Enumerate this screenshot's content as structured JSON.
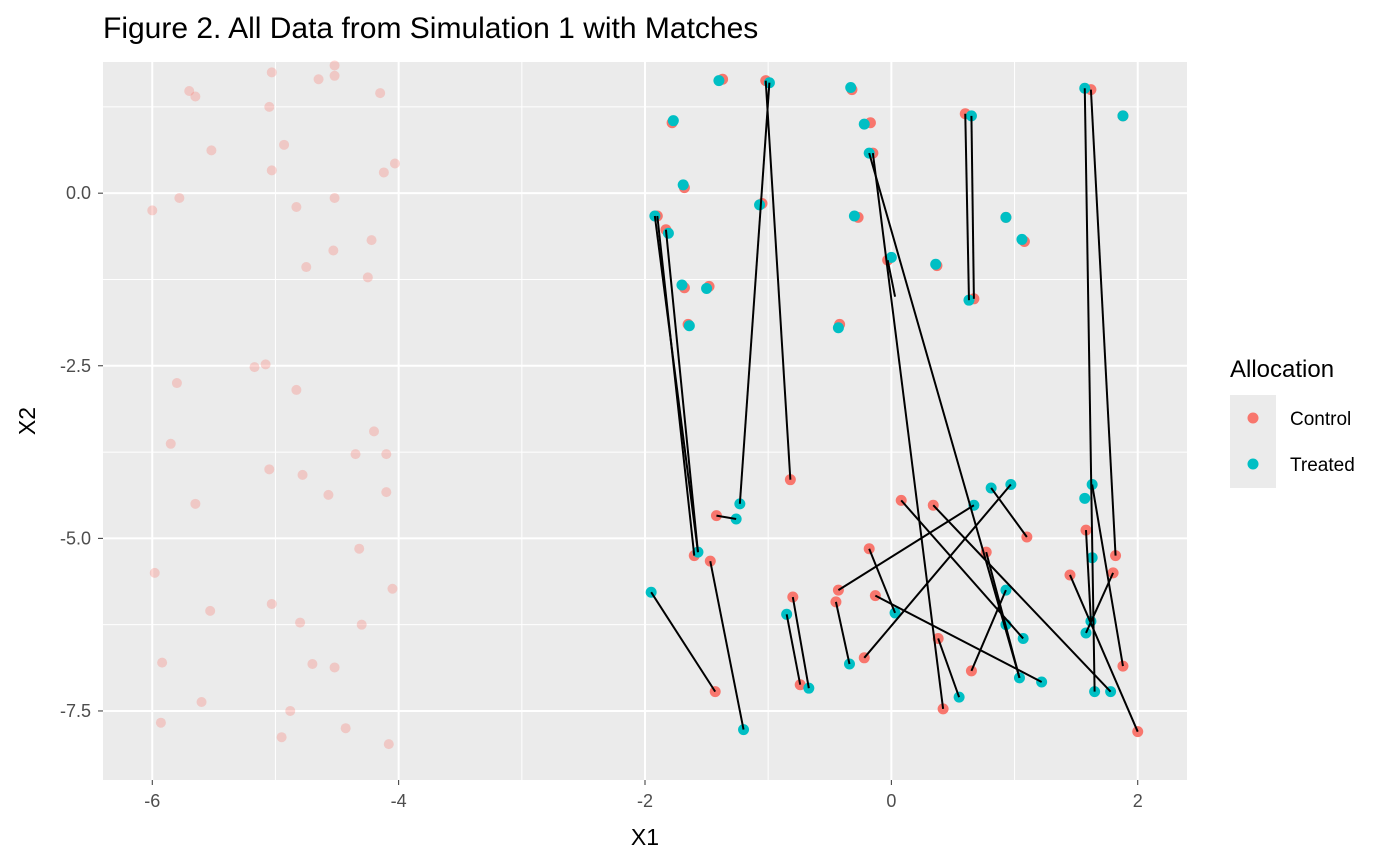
{
  "chart_data": {
    "type": "scatter",
    "title": "Figure 2. All Data from Simulation 1 with Matches",
    "xlabel": "X1",
    "ylabel": "X2",
    "xlim": [
      -6.4,
      2.4
    ],
    "ylim": [
      -8.5,
      1.9
    ],
    "x_ticks": [
      -6,
      -4,
      -2,
      0,
      2
    ],
    "x_tick_labels": [
      "-6",
      "-4",
      "-2",
      "0",
      "2"
    ],
    "y_ticks": [
      0.0,
      -2.5,
      -5.0,
      -7.5
    ],
    "y_tick_labels": [
      "0.0",
      "-2.5",
      "-5.0",
      "-7.5"
    ],
    "grid": true,
    "legend": {
      "title": "Allocation",
      "position": "right",
      "entries": [
        {
          "label": "Control",
          "color": "#F8766D"
        },
        {
          "label": "Treated",
          "color": "#00BFC4"
        }
      ]
    },
    "colors": {
      "control": "#F8766D",
      "treated": "#00BFC4",
      "panel": "#EBEBEB",
      "grid": "#FFFFFF",
      "line": "#000000"
    },
    "unmatched_control_points": [
      [
        -6.0,
        -0.25
      ],
      [
        -5.78,
        -0.07
      ],
      [
        -5.7,
        1.48
      ],
      [
        -5.65,
        1.4
      ],
      [
        -5.52,
        0.62
      ],
      [
        -5.03,
        1.75
      ],
      [
        -5.05,
        1.25
      ],
      [
        -5.03,
        0.33
      ],
      [
        -4.93,
        0.7
      ],
      [
        -4.83,
        -0.2
      ],
      [
        -4.65,
        1.65
      ],
      [
        -4.52,
        1.85
      ],
      [
        -4.52,
        1.7
      ],
      [
        -4.52,
        -0.07
      ],
      [
        -4.53,
        -0.83
      ],
      [
        -4.75,
        -1.07
      ],
      [
        -4.25,
        -1.22
      ],
      [
        -4.22,
        -0.68
      ],
      [
        -4.15,
        1.45
      ],
      [
        -4.12,
        0.3
      ],
      [
        -4.03,
        0.43
      ],
      [
        -5.17,
        -2.52
      ],
      [
        -5.08,
        -2.48
      ],
      [
        -5.8,
        -2.75
      ],
      [
        -4.83,
        -2.85
      ],
      [
        -5.85,
        -3.63
      ],
      [
        -4.2,
        -3.45
      ],
      [
        -4.35,
        -3.78
      ],
      [
        -4.1,
        -3.78
      ],
      [
        -5.05,
        -4.0
      ],
      [
        -4.78,
        -4.08
      ],
      [
        -5.65,
        -4.5
      ],
      [
        -4.57,
        -4.37
      ],
      [
        -4.1,
        -4.33
      ],
      [
        -4.32,
        -5.15
      ],
      [
        -5.98,
        -5.5
      ],
      [
        -5.03,
        -5.95
      ],
      [
        -5.53,
        -6.05
      ],
      [
        -4.05,
        -5.73
      ],
      [
        -4.8,
        -6.22
      ],
      [
        -4.3,
        -6.25
      ],
      [
        -5.92,
        -6.8
      ],
      [
        -4.7,
        -6.82
      ],
      [
        -4.52,
        -6.87
      ],
      [
        -5.6,
        -7.37
      ],
      [
        -4.88,
        -7.5
      ],
      [
        -5.93,
        -7.67
      ],
      [
        -4.43,
        -7.75
      ],
      [
        -4.95,
        -7.88
      ],
      [
        -4.08,
        -7.98
      ]
    ],
    "control_points": [
      [
        -1.37,
        1.65
      ],
      [
        -1.02,
        1.63
      ],
      [
        -0.32,
        1.5
      ],
      [
        0.6,
        1.15
      ],
      [
        1.62,
        1.5
      ],
      [
        1.88,
        1.12
      ],
      [
        -1.78,
        1.02
      ],
      [
        -0.17,
        1.02
      ],
      [
        -0.15,
        0.58
      ],
      [
        -1.68,
        0.08
      ],
      [
        -1.05,
        -0.15
      ],
      [
        -1.9,
        -0.33
      ],
      [
        -1.83,
        -0.53
      ],
      [
        -0.27,
        -0.35
      ],
      [
        0.93,
        -0.35
      ],
      [
        1.08,
        -0.7
      ],
      [
        -1.68,
        -1.37
      ],
      [
        -1.48,
        -1.35
      ],
      [
        -0.03,
        -0.97
      ],
      [
        0.37,
        -1.05
      ],
      [
        0.67,
        -1.53
      ],
      [
        -1.65,
        -1.9
      ],
      [
        -0.42,
        -1.9
      ],
      [
        -0.82,
        -4.15
      ],
      [
        -1.42,
        -4.67
      ],
      [
        0.08,
        -4.45
      ],
      [
        0.34,
        -4.52
      ],
      [
        1.1,
        -4.98
      ],
      [
        1.82,
        -5.25
      ],
      [
        1.58,
        -4.88
      ],
      [
        -1.6,
        -5.25
      ],
      [
        -1.47,
        -5.33
      ],
      [
        -0.18,
        -5.15
      ],
      [
        0.77,
        -5.2
      ],
      [
        1.45,
        -5.53
      ],
      [
        1.8,
        -5.5
      ],
      [
        -0.43,
        -5.75
      ],
      [
        -0.8,
        -5.85
      ],
      [
        -0.45,
        -5.92
      ],
      [
        -0.13,
        -5.83
      ],
      [
        0.38,
        -6.45
      ],
      [
        -0.22,
        -6.73
      ],
      [
        1.88,
        -6.85
      ],
      [
        0.65,
        -6.92
      ],
      [
        -0.74,
        -7.12
      ],
      [
        -1.43,
        -7.22
      ],
      [
        0.42,
        -7.47
      ],
      [
        2.0,
        -7.8
      ]
    ],
    "treated_points": [
      [
        -1.4,
        1.63
      ],
      [
        -0.99,
        1.6
      ],
      [
        -0.33,
        1.53
      ],
      [
        0.65,
        1.12
      ],
      [
        1.57,
        1.52
      ],
      [
        1.88,
        1.12
      ],
      [
        -1.77,
        1.05
      ],
      [
        -0.22,
        1.0
      ],
      [
        -0.18,
        0.58
      ],
      [
        -1.69,
        0.12
      ],
      [
        -1.07,
        -0.17
      ],
      [
        -1.92,
        -0.33
      ],
      [
        -1.81,
        -0.58
      ],
      [
        -0.3,
        -0.33
      ],
      [
        0.93,
        -0.35
      ],
      [
        1.06,
        -0.67
      ],
      [
        -1.7,
        -1.33
      ],
      [
        -1.5,
        -1.38
      ],
      [
        0.0,
        -0.93
      ],
      [
        0.36,
        -1.03
      ],
      [
        0.63,
        -1.55
      ],
      [
        -1.64,
        -1.92
      ],
      [
        -0.43,
        -1.95
      ],
      [
        -1.23,
        -4.5
      ],
      [
        -1.26,
        -4.72
      ],
      [
        0.97,
        -4.22
      ],
      [
        0.81,
        -4.27
      ],
      [
        0.67,
        -4.52
      ],
      [
        1.63,
        -4.22
      ],
      [
        1.57,
        -4.42
      ],
      [
        -1.57,
        -5.2
      ],
      [
        1.63,
        -5.28
      ],
      [
        0.03,
        -6.08
      ],
      [
        0.93,
        -5.75
      ],
      [
        -1.95,
        -5.78
      ],
      [
        -0.85,
        -6.1
      ],
      [
        0.93,
        -6.25
      ],
      [
        1.07,
        -6.45
      ],
      [
        1.62,
        -6.2
      ],
      [
        1.58,
        -6.37
      ],
      [
        -0.34,
        -6.82
      ],
      [
        1.04,
        -7.02
      ],
      [
        1.22,
        -7.08
      ],
      [
        1.65,
        -7.22
      ],
      [
        1.78,
        -7.22
      ],
      [
        -0.67,
        -7.17
      ],
      [
        0.55,
        -7.3
      ],
      [
        -1.2,
        -7.77
      ]
    ],
    "match_lines": [
      [
        [
          -1.9,
          -0.33
        ],
        [
          -1.6,
          -5.25
        ]
      ],
      [
        [
          -1.92,
          -0.33
        ],
        [
          -1.57,
          -5.2
        ]
      ],
      [
        [
          -1.83,
          -0.53
        ],
        [
          -1.57,
          -5.2
        ]
      ],
      [
        [
          -1.02,
          1.63
        ],
        [
          -0.82,
          -4.15
        ]
      ],
      [
        [
          -0.99,
          1.6
        ],
        [
          -1.23,
          -4.5
        ]
      ],
      [
        [
          -0.15,
          0.58
        ],
        [
          0.42,
          -7.47
        ]
      ],
      [
        [
          -0.18,
          0.58
        ],
        [
          1.04,
          -7.02
        ]
      ],
      [
        [
          0.6,
          1.15
        ],
        [
          0.63,
          -1.55
        ]
      ],
      [
        [
          0.65,
          1.12
        ],
        [
          0.67,
          -1.53
        ]
      ],
      [
        [
          1.57,
          1.52
        ],
        [
          1.65,
          -7.22
        ]
      ],
      [
        [
          1.62,
          1.5
        ],
        [
          1.82,
          -5.25
        ]
      ],
      [
        [
          -0.03,
          -0.97
        ],
        [
          0.03,
          -1.5
        ]
      ],
      [
        [
          -1.42,
          -4.67
        ],
        [
          -1.26,
          -4.72
        ]
      ],
      [
        [
          -1.47,
          -5.33
        ],
        [
          -1.2,
          -7.77
        ]
      ],
      [
        [
          -1.95,
          -5.78
        ],
        [
          -1.43,
          -7.22
        ]
      ],
      [
        [
          -0.8,
          -5.85
        ],
        [
          -0.67,
          -7.17
        ]
      ],
      [
        [
          -0.85,
          -6.1
        ],
        [
          -0.74,
          -7.12
        ]
      ],
      [
        [
          -0.45,
          -5.92
        ],
        [
          -0.34,
          -6.82
        ]
      ],
      [
        [
          -0.43,
          -5.75
        ],
        [
          0.67,
          -4.52
        ]
      ],
      [
        [
          -0.22,
          -6.73
        ],
        [
          0.97,
          -4.22
        ]
      ],
      [
        [
          0.08,
          -4.45
        ],
        [
          1.07,
          -6.45
        ]
      ],
      [
        [
          0.34,
          -4.52
        ],
        [
          1.78,
          -7.22
        ]
      ],
      [
        [
          0.81,
          -4.27
        ],
        [
          1.1,
          -4.98
        ]
      ],
      [
        [
          -0.18,
          -5.15
        ],
        [
          0.03,
          -6.08
        ]
      ],
      [
        [
          0.77,
          -5.2
        ],
        [
          1.04,
          -7.02
        ]
      ],
      [
        [
          -0.13,
          -5.83
        ],
        [
          1.22,
          -7.08
        ]
      ],
      [
        [
          0.38,
          -6.45
        ],
        [
          0.55,
          -7.3
        ]
      ],
      [
        [
          0.65,
          -6.92
        ],
        [
          0.93,
          -5.75
        ]
      ],
      [
        [
          1.45,
          -5.53
        ],
        [
          2.0,
          -7.8
        ]
      ],
      [
        [
          1.63,
          -4.22
        ],
        [
          1.88,
          -6.85
        ]
      ],
      [
        [
          1.58,
          -4.88
        ],
        [
          1.62,
          -6.2
        ]
      ],
      [
        [
          1.58,
          -6.37
        ],
        [
          1.8,
          -5.5
        ]
      ]
    ]
  }
}
